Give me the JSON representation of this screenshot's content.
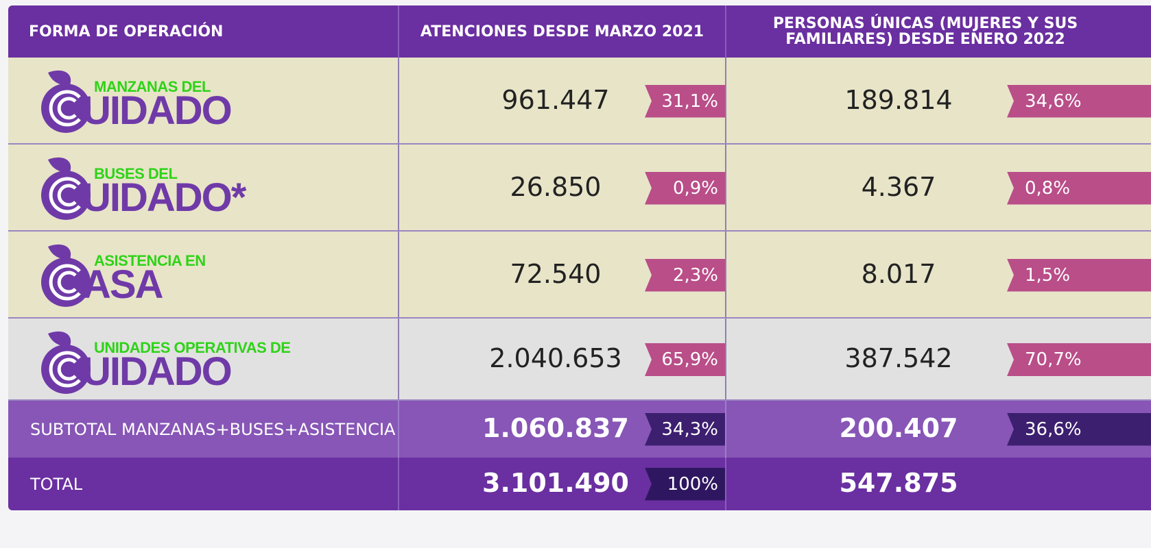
{
  "header": [
    "FORMA DE OPERACIÓN",
    "ATENCIONES DESDE MARZO 2021",
    "PERSONAS ÚNICAS (MUJERES Y SUS FAMILIARES) DESDE ENERO 2022"
  ],
  "rows": [
    {
      "logo_small": "MANZANAS DEL",
      "logo_big": "UIDADO",
      "attentions": "961.447",
      "attentions_pct": "31,1%",
      "persons": "189.814",
      "persons_pct": "34,6%"
    },
    {
      "logo_small": "BUSES DEL",
      "logo_big": "UIDADO*",
      "attentions": "26.850",
      "attentions_pct": "0,9%",
      "persons": "4.367",
      "persons_pct": "0,8%"
    },
    {
      "logo_small": "ASISTENCIA EN",
      "logo_big": "ASA",
      "attentions": "72.540",
      "attentions_pct": "2,3%",
      "persons": "8.017",
      "persons_pct": "1,5%"
    },
    {
      "logo_small": "UNIDADES OPERATIVAS DE",
      "logo_big": "UIDADO",
      "attentions": "2.040.653",
      "attentions_pct": "65,9%",
      "persons": "387.542",
      "persons_pct": "70,7%"
    }
  ],
  "subtotal": {
    "label": "SUBTOTAL MANZANAS+BUSES+ASISTENCIA",
    "attentions": "1.060.837",
    "attentions_pct": "34,3%",
    "persons": "200.407",
    "persons_pct": "36,6%"
  },
  "total": {
    "label": "TOTAL",
    "attentions": "3.101.490",
    "attentions_pct": "100%",
    "persons": "547.875"
  }
}
